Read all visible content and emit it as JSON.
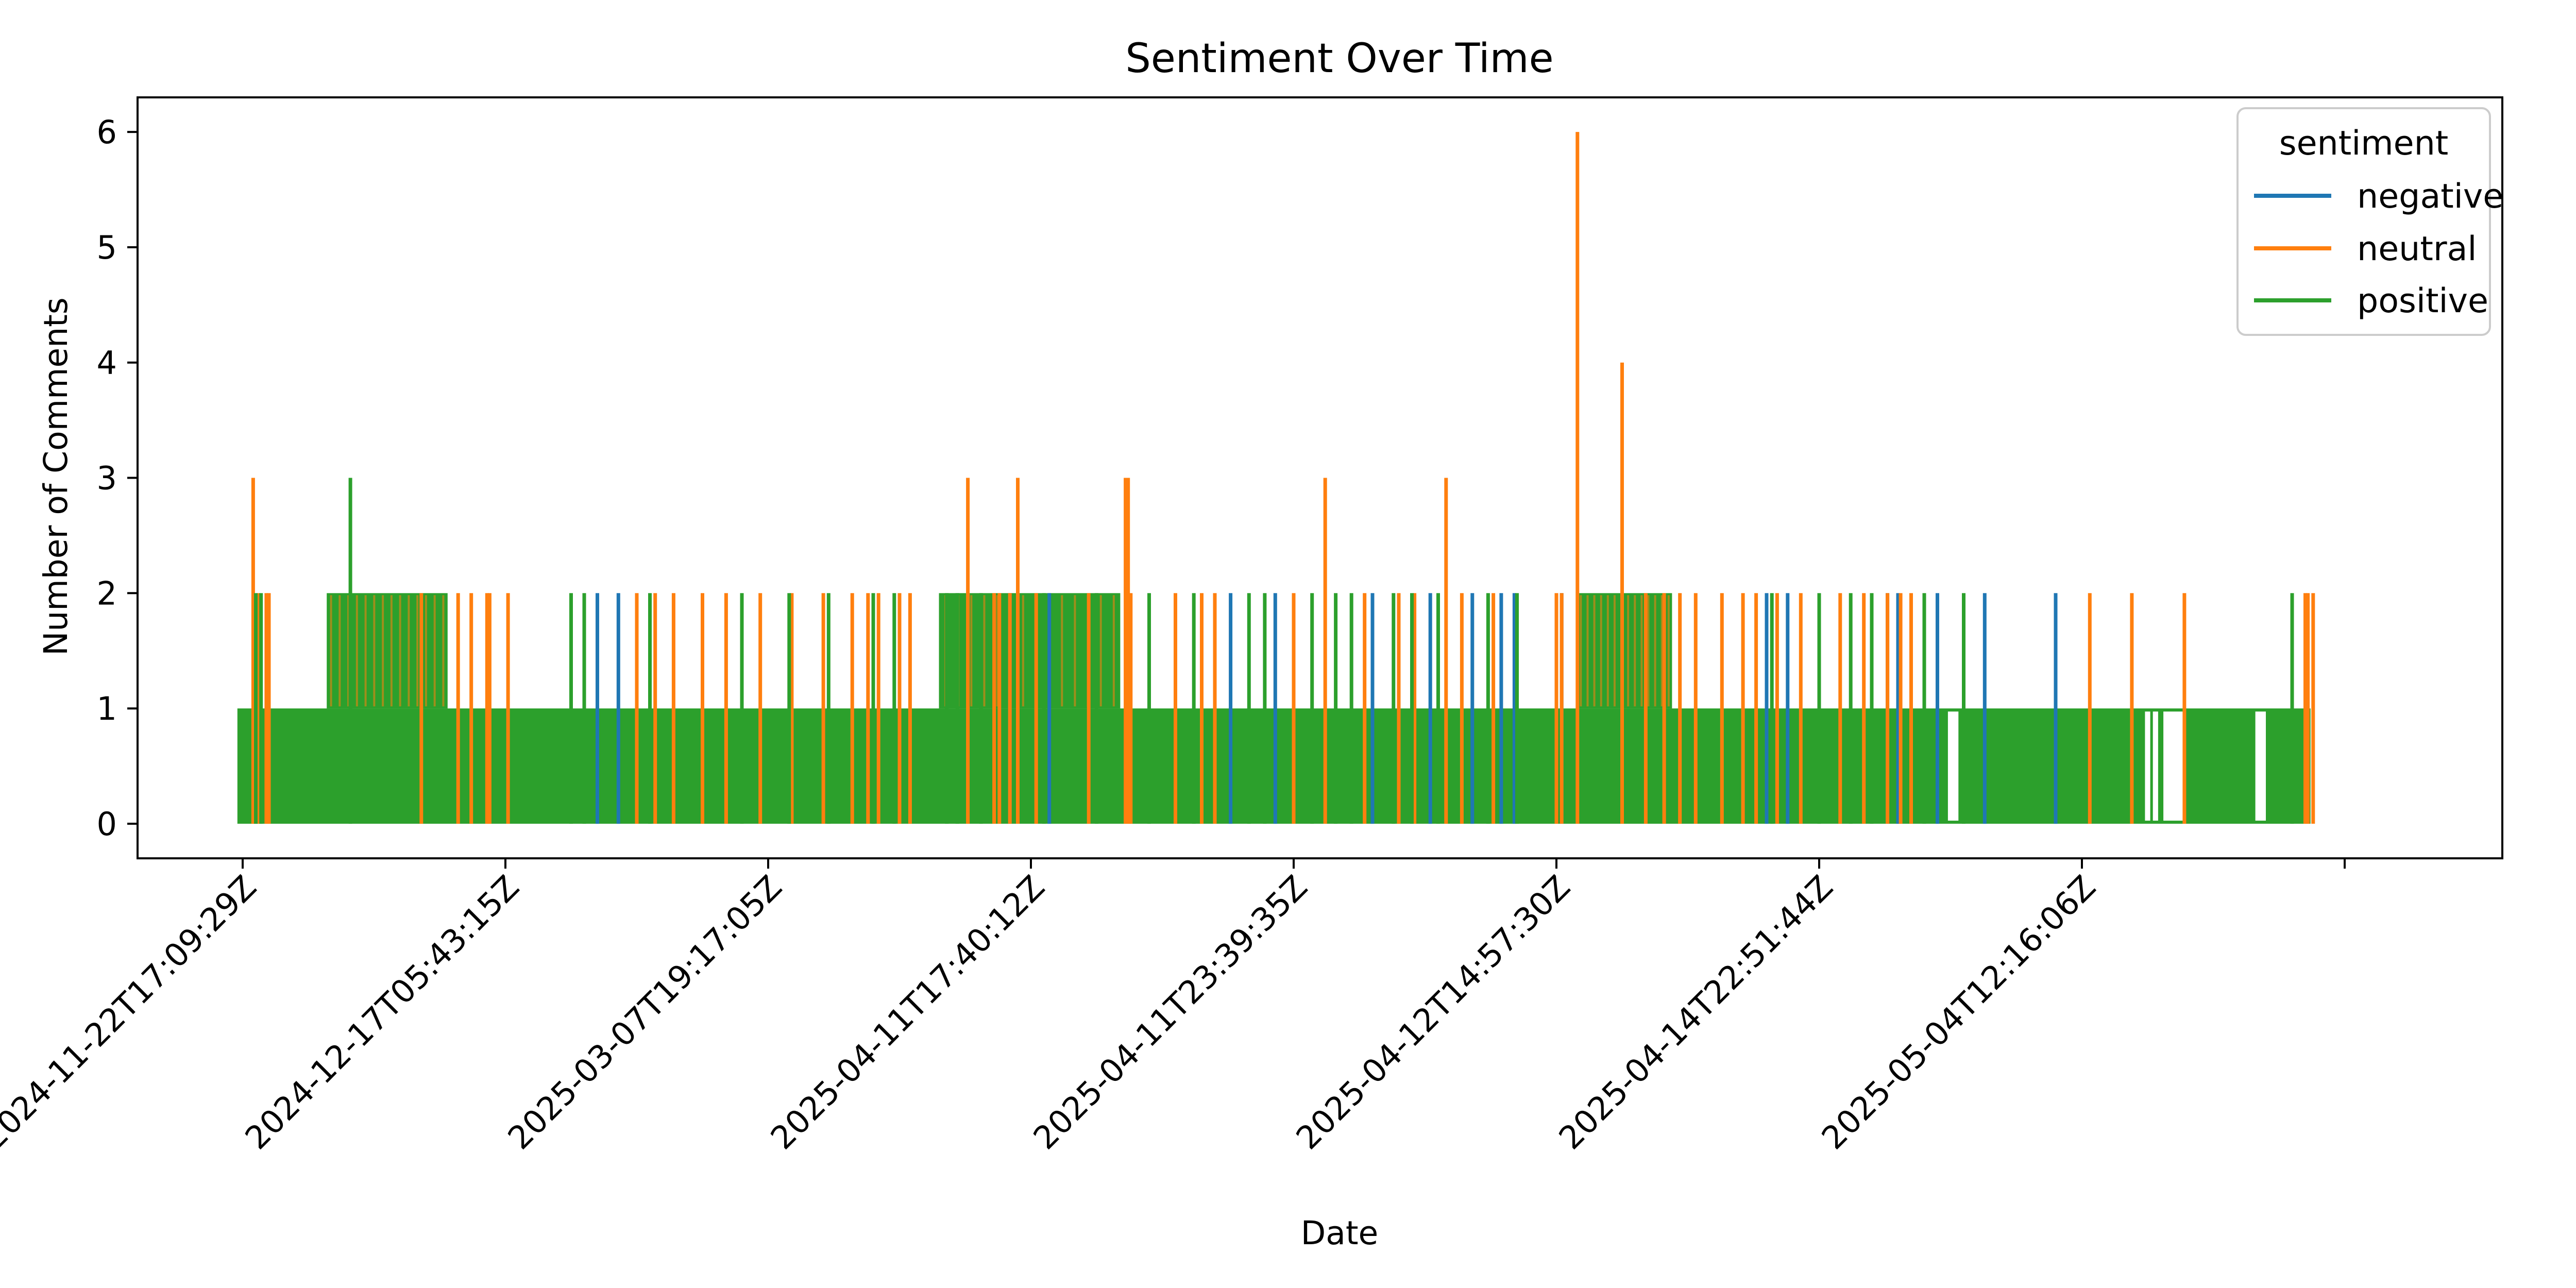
{
  "chart_data": {
    "type": "line",
    "title": "Sentiment Over Time",
    "xlabel": "Date",
    "ylabel": "Number of Comments",
    "ylim": [
      -0.3,
      6.3
    ],
    "yticks": [
      0,
      1,
      2,
      3,
      4,
      5,
      6
    ],
    "xlim": [
      -0.4,
      8.6
    ],
    "xtick_labels": [
      "2024-11-22T17:09:29Z",
      "2024-12-17T05:43:15Z",
      "2025-03-07T19:17:05Z",
      "2025-04-11T17:40:12Z",
      "2025-04-11T23:39:35Z",
      "2025-04-12T14:57:30Z",
      "2025-04-14T22:51:44Z",
      "2025-05-04T12:16:06Z",
      ""
    ],
    "grid": false,
    "legend": {
      "title": "sentiment",
      "placement": "top-right"
    },
    "series": [
      {
        "name": "negative",
        "color": "#1f77b4",
        "spikes": [
          [
            1.35,
            2
          ],
          [
            1.43,
            2
          ],
          [
            2.92,
            2
          ],
          [
            3.07,
            2
          ],
          [
            3.76,
            2
          ],
          [
            3.93,
            2
          ],
          [
            4.3,
            2
          ],
          [
            4.52,
            2
          ],
          [
            4.68,
            2
          ],
          [
            4.79,
            2
          ],
          [
            4.84,
            2
          ],
          [
            5.02,
            2
          ],
          [
            5.8,
            2
          ],
          [
            5.88,
            2
          ],
          [
            6.26,
            2
          ],
          [
            6.3,
            2
          ],
          [
            6.45,
            2
          ],
          [
            6.63,
            2
          ],
          [
            6.9,
            2
          ]
        ]
      },
      {
        "name": "neutral",
        "color": "#ff7f0e",
        "spikes": [
          [
            0.04,
            3
          ],
          [
            0.06,
            2
          ],
          [
            0.09,
            2
          ],
          [
            0.1,
            2
          ],
          [
            0.68,
            2
          ],
          [
            0.82,
            2
          ],
          [
            0.87,
            2
          ],
          [
            0.93,
            2
          ],
          [
            0.94,
            2
          ],
          [
            1.01,
            2
          ],
          [
            1.5,
            2
          ],
          [
            1.57,
            2
          ],
          [
            1.64,
            2
          ],
          [
            1.75,
            2
          ],
          [
            1.84,
            2
          ],
          [
            1.97,
            2
          ],
          [
            2.09,
            2
          ],
          [
            2.21,
            2
          ],
          [
            2.32,
            2
          ],
          [
            2.38,
            2
          ],
          [
            2.42,
            2
          ],
          [
            2.5,
            2
          ],
          [
            2.54,
            2
          ],
          [
            2.76,
            3
          ],
          [
            2.86,
            2
          ],
          [
            2.88,
            2
          ],
          [
            2.92,
            2
          ],
          [
            2.95,
            3
          ],
          [
            3.02,
            2
          ],
          [
            3.22,
            2
          ],
          [
            3.36,
            3
          ],
          [
            3.37,
            3
          ],
          [
            3.38,
            2
          ],
          [
            3.55,
            2
          ],
          [
            3.65,
            2
          ],
          [
            3.7,
            2
          ],
          [
            4.0,
            2
          ],
          [
            4.12,
            3
          ],
          [
            4.27,
            2
          ],
          [
            4.4,
            2
          ],
          [
            4.46,
            2
          ],
          [
            4.58,
            3
          ],
          [
            4.64,
            2
          ],
          [
            4.76,
            2
          ],
          [
            5.0,
            2
          ],
          [
            5.02,
            2
          ],
          [
            5.08,
            6
          ],
          [
            5.25,
            4
          ],
          [
            5.34,
            2
          ],
          [
            5.41,
            2
          ],
          [
            5.47,
            2
          ],
          [
            5.53,
            2
          ],
          [
            5.63,
            2
          ],
          [
            5.71,
            2
          ],
          [
            5.76,
            2
          ],
          [
            5.84,
            2
          ],
          [
            5.93,
            2
          ],
          [
            6.08,
            2
          ],
          [
            6.17,
            2
          ],
          [
            6.26,
            2
          ],
          [
            6.31,
            2
          ],
          [
            6.35,
            2
          ],
          [
            7.03,
            2
          ],
          [
            7.19,
            2
          ],
          [
            7.39,
            2
          ],
          [
            7.85,
            2
          ],
          [
            7.86,
            2
          ],
          [
            7.88,
            2
          ]
        ]
      },
      {
        "name": "positive",
        "color": "#2ca02c",
        "spikes": [
          [
            0.05,
            2
          ],
          [
            0.07,
            2
          ],
          [
            0.41,
            3
          ],
          [
            1.25,
            2
          ],
          [
            1.3,
            2
          ],
          [
            1.55,
            2
          ],
          [
            1.9,
            2
          ],
          [
            2.08,
            2
          ],
          [
            2.23,
            2
          ],
          [
            2.4,
            2
          ],
          [
            2.48,
            2
          ],
          [
            2.68,
            2
          ],
          [
            2.72,
            2
          ],
          [
            2.81,
            2
          ],
          [
            3.05,
            2
          ],
          [
            3.25,
            2
          ],
          [
            3.45,
            2
          ],
          [
            3.62,
            2
          ],
          [
            3.83,
            2
          ],
          [
            3.89,
            2
          ],
          [
            4.07,
            2
          ],
          [
            4.16,
            2
          ],
          [
            4.22,
            2
          ],
          [
            4.38,
            2
          ],
          [
            4.45,
            2
          ],
          [
            4.55,
            2
          ],
          [
            4.74,
            2
          ],
          [
            4.85,
            2
          ],
          [
            5.82,
            2
          ],
          [
            6.0,
            2
          ],
          [
            6.12,
            2
          ],
          [
            6.2,
            2
          ],
          [
            6.4,
            2
          ],
          [
            6.55,
            2
          ],
          [
            7.8,
            2
          ]
        ],
        "dense_ranges": [
          {
            "from": 0.32,
            "to": 0.78,
            "max": 2
          },
          {
            "from": 2.65,
            "to": 3.34,
            "max": 2
          },
          {
            "from": 5.08,
            "to": 5.44,
            "max": 2
          }
        ]
      }
    ],
    "baseline": {
      "from": -0.02,
      "to": 7.87,
      "value": 1
    },
    "gaps": [
      [
        6.49,
        6.53
      ],
      [
        7.24,
        7.26
      ],
      [
        7.27,
        7.29
      ],
      [
        7.31,
        7.39
      ],
      [
        7.66,
        7.7
      ]
    ]
  }
}
